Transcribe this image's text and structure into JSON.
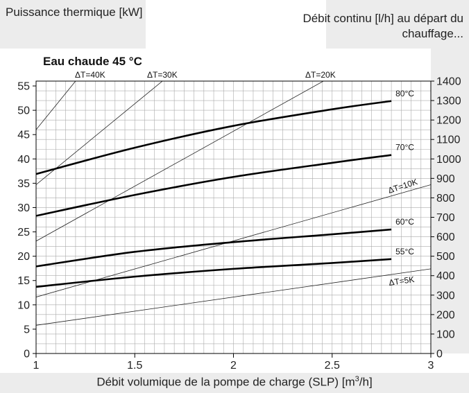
{
  "chart_data": {
    "type": "line",
    "title": "Eau chaude 45 °C",
    "ylabel_left": "Puissance thermique [kW]",
    "ylabel_right": "Débit continu [l/h] au départ du chauffage...",
    "xlabel": "Débit volumique de la pompe de charge (SLP)",
    "xlabel_unit_pre": "[m",
    "xlabel_unit_sup": "3",
    "xlabel_unit_post": "/h]",
    "xlim": [
      1,
      3
    ],
    "ylim": [
      0,
      56
    ],
    "y2lim": [
      0,
      1400
    ],
    "x_ticks": [
      "1",
      "1.5",
      "2",
      "2.5",
      "3"
    ],
    "x_tick_values": [
      1,
      1.5,
      2,
      2.5,
      3
    ],
    "y_ticks": [
      "0",
      "5",
      "10",
      "15",
      "20",
      "25",
      "30",
      "35",
      "40",
      "45",
      "50",
      "55"
    ],
    "y_tick_values": [
      0,
      5,
      10,
      15,
      20,
      25,
      30,
      35,
      40,
      45,
      50,
      55
    ],
    "y2_ticks": [
      "0",
      "100",
      "200",
      "300",
      "400",
      "500",
      "600",
      "700",
      "800",
      "900",
      "1000",
      "1100",
      "1200",
      "1300",
      "1400"
    ],
    "y2_tick_values": [
      0,
      100,
      200,
      300,
      400,
      500,
      600,
      700,
      800,
      900,
      1000,
      1100,
      1200,
      1300,
      1400
    ],
    "grid": true,
    "series": [
      {
        "name": "80°C",
        "x": [
          1,
          1.5,
          2,
          2.5,
          2.8
        ],
        "y": [
          36.9,
          42.3,
          46.8,
          50.2,
          51.9
        ]
      },
      {
        "name": "70°C",
        "x": [
          1,
          1.5,
          2,
          2.5,
          2.8
        ],
        "y": [
          28.3,
          32.6,
          36.3,
          39.2,
          40.8
        ]
      },
      {
        "name": "60°C",
        "x": [
          1,
          1.5,
          2,
          2.5,
          2.8
        ],
        "y": [
          17.9,
          20.9,
          22.9,
          24.5,
          25.5
        ]
      },
      {
        "name": "55°C",
        "x": [
          1,
          1.5,
          2,
          2.5,
          2.8
        ],
        "y": [
          13.7,
          15.8,
          17.4,
          18.6,
          19.4
        ]
      }
    ],
    "delta_t_lines": [
      {
        "name": "ΔT=40K",
        "x": [
          1,
          1.22
        ],
        "y": [
          46.0,
          57.0
        ]
      },
      {
        "name": "ΔT=30K",
        "x": [
          1,
          1.67
        ],
        "y": [
          34.7,
          57.0
        ]
      },
      {
        "name": "ΔT=20K",
        "x": [
          1,
          2.5
        ],
        "y": [
          23.1,
          57.0
        ]
      },
      {
        "name": "ΔT=10K",
        "x": [
          1,
          3
        ],
        "y": [
          11.6,
          34.7
        ]
      },
      {
        "name": "ΔT=5K",
        "x": [
          1,
          3
        ],
        "y": [
          5.8,
          17.4
        ]
      }
    ]
  }
}
